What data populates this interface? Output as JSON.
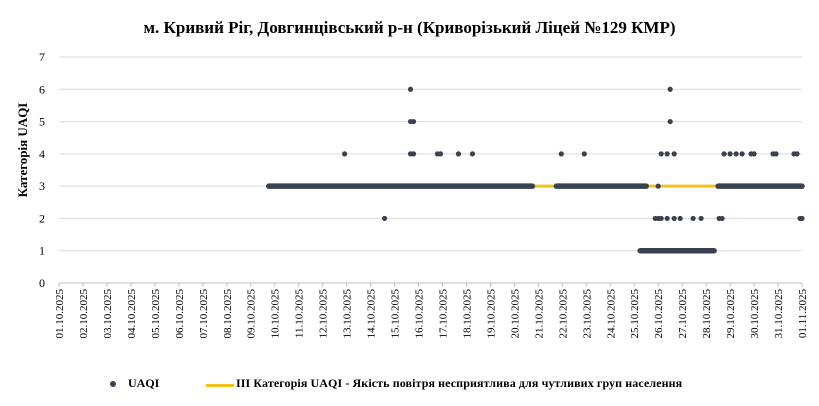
{
  "chart_data": {
    "type": "scatter",
    "title": "м. Кривий Ріг, Довгинцівський р-н (Криворізький Ліцей №129 КМР)",
    "ylabel": "Категорія UAQI",
    "xlabel": "",
    "ylim": [
      0,
      7
    ],
    "yticks": [
      0,
      1,
      2,
      3,
      4,
      5,
      6,
      7
    ],
    "xticks": [
      "01.10.2025",
      "02.10.2025",
      "03.10.2025",
      "04.10.2025",
      "05.10.2025",
      "06.10.2025",
      "07.10.2025",
      "08.10.2025",
      "09.10.2025",
      "10.10.2025",
      "11.10.2025",
      "12.10.2025",
      "13.10.2025",
      "14.10.2025",
      "15.10.2025",
      "16.10.2025",
      "17.10.2025",
      "18.10.2025",
      "19.10.2025",
      "20.10.2025",
      "21.10.2025",
      "22.10.2025",
      "23.10.2025",
      "24.10.2025",
      "25.10.2025",
      "26.10.2025",
      "27.10.2025",
      "28.10.2025",
      "29.10.2025",
      "30.10.2025",
      "31.10.2025",
      "01.11.2025"
    ],
    "grid": "horizontal",
    "legend_position": "bottom",
    "series": [
      {
        "name": "UAQI",
        "color": "#3a4250",
        "segments": [
          {
            "x_start": "2025-10-09T18:00",
            "x_end": "2025-10-20T18:00",
            "y": 3
          },
          {
            "x_start": "2025-10-21T18:00",
            "x_end": "2025-10-25T12:00",
            "y": 3
          },
          {
            "x_start": "2025-10-28T12:00",
            "x_end": "2025-11-01T00:00",
            "y": 3
          },
          {
            "x_start": "2025-10-25T06:00",
            "x_end": "2025-10-28T08:00",
            "y": 1
          }
        ],
        "points": [
          {
            "x": "2025-10-12T22:00",
            "y": 4
          },
          {
            "x": "2025-10-14T14:00",
            "y": 2
          },
          {
            "x": "2025-10-15T16:00",
            "y": 6
          },
          {
            "x": "2025-10-15T16:00",
            "y": 5
          },
          {
            "x": "2025-10-15T19:00",
            "y": 5
          },
          {
            "x": "2025-10-15T16:00",
            "y": 4
          },
          {
            "x": "2025-10-15T19:00",
            "y": 4
          },
          {
            "x": "2025-10-16T19:00",
            "y": 4
          },
          {
            "x": "2025-10-16T22:00",
            "y": 4
          },
          {
            "x": "2025-10-17T16:00",
            "y": 4
          },
          {
            "x": "2025-10-18T06:00",
            "y": 4
          },
          {
            "x": "2025-10-21T23:00",
            "y": 4
          },
          {
            "x": "2025-10-22T22:00",
            "y": 4
          },
          {
            "x": "2025-10-25T21:00",
            "y": 2
          },
          {
            "x": "2025-10-26T00:00",
            "y": 2
          },
          {
            "x": "2025-10-26T03:00",
            "y": 2
          },
          {
            "x": "2025-10-26T09:00",
            "y": 2
          },
          {
            "x": "2025-10-26T00:00",
            "y": 3
          },
          {
            "x": "2025-10-26T03:00",
            "y": 4
          },
          {
            "x": "2025-10-26T09:00",
            "y": 4
          },
          {
            "x": "2025-10-26T12:00",
            "y": 6
          },
          {
            "x": "2025-10-26T12:00",
            "y": 5
          },
          {
            "x": "2025-10-26T16:00",
            "y": 4
          },
          {
            "x": "2025-10-26T16:00",
            "y": 2
          },
          {
            "x": "2025-10-26T22:00",
            "y": 2
          },
          {
            "x": "2025-10-26T16:00",
            "y": 1
          },
          {
            "x": "2025-10-27T11:00",
            "y": 2
          },
          {
            "x": "2025-10-27T19:00",
            "y": 2
          },
          {
            "x": "2025-10-28T13:00",
            "y": 2
          },
          {
            "x": "2025-10-28T16:00",
            "y": 2
          },
          {
            "x": "2025-10-28T18:00",
            "y": 4
          },
          {
            "x": "2025-10-29T00:00",
            "y": 4
          },
          {
            "x": "2025-10-29T06:00",
            "y": 4
          },
          {
            "x": "2025-10-29T12:00",
            "y": 4
          },
          {
            "x": "2025-10-29T21:00",
            "y": 4
          },
          {
            "x": "2025-10-30T00:00",
            "y": 4
          },
          {
            "x": "2025-10-30T19:00",
            "y": 4
          },
          {
            "x": "2025-10-30T22:00",
            "y": 4
          },
          {
            "x": "2025-10-31T16:00",
            "y": 4
          },
          {
            "x": "2025-10-31T19:00",
            "y": 4
          },
          {
            "x": "2025-10-31T22:00",
            "y": 2
          },
          {
            "x": "2025-11-01T00:00",
            "y": 2
          }
        ]
      },
      {
        "name": "ІІІ Категорія  UAQI  - Якість  повітря  несприятлива   для чутливих  груп  населення",
        "color": "#f2c21b",
        "segments": [
          {
            "x_start": "2025-10-20T18:00",
            "x_end": "2025-10-21T18:00",
            "y": 3
          },
          {
            "x_start": "2025-10-25T12:00",
            "x_end": "2025-10-28T12:00",
            "y": 3
          }
        ]
      }
    ]
  }
}
